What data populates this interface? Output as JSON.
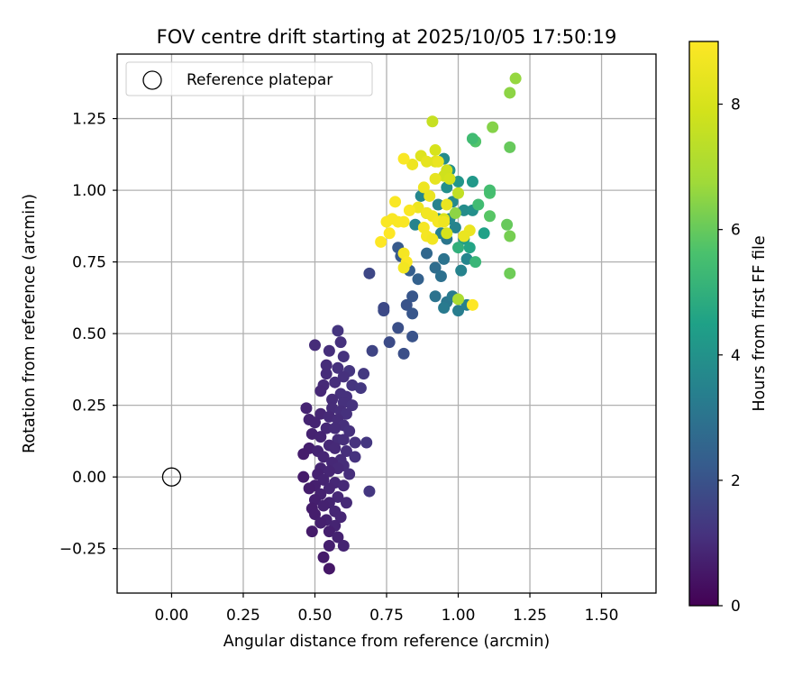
{
  "chart_data": {
    "type": "scatter",
    "title": "FOV centre drift starting at 2025/10/05 17:50:19",
    "xlabel": "Angular distance from reference (arcmin)",
    "ylabel": "Rotation from reference (arcmin)",
    "xlim": [
      -0.19,
      1.69
    ],
    "ylim": [
      -0.405,
      1.475
    ],
    "xticks": [
      0.0,
      0.25,
      0.5,
      0.75,
      1.0,
      1.25,
      1.5
    ],
    "xtick_labels": [
      "0.00",
      "0.25",
      "0.50",
      "0.75",
      "1.00",
      "1.25",
      "1.50"
    ],
    "yticks": [
      -0.25,
      0.0,
      0.25,
      0.5,
      0.75,
      1.0,
      1.25
    ],
    "ytick_labels": [
      "−0.25",
      "0.00",
      "0.25",
      "0.50",
      "0.75",
      "1.00",
      "1.25"
    ],
    "grid": true,
    "legend": {
      "position": "top-left",
      "entries": [
        "Reference platepar"
      ]
    },
    "reference_point": {
      "x": 0.0,
      "y": 0.0,
      "label": "Reference platepar"
    },
    "colorbar": {
      "label": "Hours from first FF file",
      "colormap": "viridis",
      "range": [
        0,
        9
      ],
      "ticks": [
        0,
        2,
        4,
        6,
        8
      ],
      "tick_labels": [
        "0",
        "2",
        "4",
        "6",
        "8"
      ]
    },
    "points": [
      {
        "x": 0.58,
        "y": 0.51,
        "h": 1.2
      },
      {
        "x": 0.5,
        "y": 0.46,
        "h": 1.0
      },
      {
        "x": 0.59,
        "y": 0.47,
        "h": 1.1
      },
      {
        "x": 0.55,
        "y": 0.44,
        "h": 1.05
      },
      {
        "x": 0.6,
        "y": 0.42,
        "h": 1.15
      },
      {
        "x": 0.54,
        "y": 0.39,
        "h": 1.0
      },
      {
        "x": 0.58,
        "y": 0.38,
        "h": 1.1
      },
      {
        "x": 0.62,
        "y": 0.37,
        "h": 1.2
      },
      {
        "x": 0.67,
        "y": 0.36,
        "h": 1.3
      },
      {
        "x": 0.54,
        "y": 0.36,
        "h": 1.0
      },
      {
        "x": 0.6,
        "y": 0.35,
        "h": 1.1
      },
      {
        "x": 0.57,
        "y": 0.33,
        "h": 1.05
      },
      {
        "x": 0.53,
        "y": 0.32,
        "h": 0.95
      },
      {
        "x": 0.63,
        "y": 0.32,
        "h": 1.2
      },
      {
        "x": 0.66,
        "y": 0.31,
        "h": 1.25
      },
      {
        "x": 0.52,
        "y": 0.3,
        "h": 0.9
      },
      {
        "x": 0.59,
        "y": 0.29,
        "h": 1.1
      },
      {
        "x": 0.61,
        "y": 0.28,
        "h": 1.1
      },
      {
        "x": 0.56,
        "y": 0.27,
        "h": 1.0
      },
      {
        "x": 0.6,
        "y": 0.26,
        "h": 1.1
      },
      {
        "x": 0.63,
        "y": 0.25,
        "h": 1.15
      },
      {
        "x": 0.56,
        "y": 0.24,
        "h": 1.0
      },
      {
        "x": 0.47,
        "y": 0.24,
        "h": 0.8
      },
      {
        "x": 0.59,
        "y": 0.23,
        "h": 1.05
      },
      {
        "x": 0.52,
        "y": 0.22,
        "h": 0.85
      },
      {
        "x": 0.61,
        "y": 0.22,
        "h": 1.1
      },
      {
        "x": 0.55,
        "y": 0.21,
        "h": 0.95
      },
      {
        "x": 0.48,
        "y": 0.2,
        "h": 0.8
      },
      {
        "x": 0.58,
        "y": 0.2,
        "h": 1.0
      },
      {
        "x": 0.5,
        "y": 0.19,
        "h": 0.8
      },
      {
        "x": 0.6,
        "y": 0.18,
        "h": 1.05
      },
      {
        "x": 0.54,
        "y": 0.17,
        "h": 0.9
      },
      {
        "x": 0.57,
        "y": 0.17,
        "h": 1.0
      },
      {
        "x": 0.62,
        "y": 0.16,
        "h": 1.1
      },
      {
        "x": 0.49,
        "y": 0.15,
        "h": 0.75
      },
      {
        "x": 0.52,
        "y": 0.14,
        "h": 0.8
      },
      {
        "x": 0.58,
        "y": 0.13,
        "h": 1.0
      },
      {
        "x": 0.6,
        "y": 0.13,
        "h": 1.05
      },
      {
        "x": 0.64,
        "y": 0.12,
        "h": 1.15
      },
      {
        "x": 0.68,
        "y": 0.12,
        "h": 1.25
      },
      {
        "x": 0.55,
        "y": 0.11,
        "h": 0.9
      },
      {
        "x": 0.48,
        "y": 0.1,
        "h": 0.7
      },
      {
        "x": 0.57,
        "y": 0.1,
        "h": 0.95
      },
      {
        "x": 0.61,
        "y": 0.09,
        "h": 1.05
      },
      {
        "x": 0.51,
        "y": 0.09,
        "h": 0.8
      },
      {
        "x": 0.46,
        "y": 0.08,
        "h": 0.65
      },
      {
        "x": 0.53,
        "y": 0.07,
        "h": 0.85
      },
      {
        "x": 0.59,
        "y": 0.06,
        "h": 1.0
      },
      {
        "x": 0.64,
        "y": 0.07,
        "h": 1.15
      },
      {
        "x": 0.56,
        "y": 0.05,
        "h": 0.9
      },
      {
        "x": 0.6,
        "y": 0.04,
        "h": 1.0
      },
      {
        "x": 0.52,
        "y": 0.03,
        "h": 0.8
      },
      {
        "x": 0.58,
        "y": 0.03,
        "h": 0.95
      },
      {
        "x": 0.55,
        "y": 0.02,
        "h": 0.85
      },
      {
        "x": 0.51,
        "y": 0.01,
        "h": 0.75
      },
      {
        "x": 0.62,
        "y": 0.01,
        "h": 1.05
      },
      {
        "x": 0.46,
        "y": 0.0,
        "h": 0.6
      },
      {
        "x": 0.53,
        "y": -0.01,
        "h": 0.8
      },
      {
        "x": 0.57,
        "y": -0.02,
        "h": 0.9
      },
      {
        "x": 0.5,
        "y": -0.03,
        "h": 0.7
      },
      {
        "x": 0.6,
        "y": -0.03,
        "h": 0.95
      },
      {
        "x": 0.55,
        "y": -0.04,
        "h": 0.85
      },
      {
        "x": 0.48,
        "y": -0.04,
        "h": 0.65
      },
      {
        "x": 0.69,
        "y": -0.05,
        "h": 1.25
      },
      {
        "x": 0.52,
        "y": -0.06,
        "h": 0.75
      },
      {
        "x": 0.58,
        "y": -0.07,
        "h": 0.9
      },
      {
        "x": 0.5,
        "y": -0.08,
        "h": 0.7
      },
      {
        "x": 0.61,
        "y": -0.09,
        "h": 0.95
      },
      {
        "x": 0.55,
        "y": -0.09,
        "h": 0.8
      },
      {
        "x": 0.53,
        "y": -0.1,
        "h": 0.75
      },
      {
        "x": 0.49,
        "y": -0.11,
        "h": 0.65
      },
      {
        "x": 0.57,
        "y": -0.12,
        "h": 0.85
      },
      {
        "x": 0.5,
        "y": -0.13,
        "h": 0.65
      },
      {
        "x": 0.59,
        "y": -0.14,
        "h": 0.85
      },
      {
        "x": 0.54,
        "y": -0.15,
        "h": 0.75
      },
      {
        "x": 0.52,
        "y": -0.16,
        "h": 0.7
      },
      {
        "x": 0.57,
        "y": -0.17,
        "h": 0.8
      },
      {
        "x": 0.49,
        "y": -0.19,
        "h": 0.6
      },
      {
        "x": 0.55,
        "y": -0.19,
        "h": 0.7
      },
      {
        "x": 0.58,
        "y": -0.21,
        "h": 0.75
      },
      {
        "x": 0.6,
        "y": -0.24,
        "h": 0.8
      },
      {
        "x": 0.55,
        "y": -0.24,
        "h": 0.7
      },
      {
        "x": 0.53,
        "y": -0.28,
        "h": 0.6
      },
      {
        "x": 0.55,
        "y": -0.32,
        "h": 0.5
      },
      {
        "x": 0.74,
        "y": 0.58,
        "h": 1.8
      },
      {
        "x": 0.7,
        "y": 0.44,
        "h": 1.6
      },
      {
        "x": 0.76,
        "y": 0.47,
        "h": 1.8
      },
      {
        "x": 0.79,
        "y": 0.52,
        "h": 1.9
      },
      {
        "x": 0.81,
        "y": 0.43,
        "h": 1.9
      },
      {
        "x": 0.84,
        "y": 0.49,
        "h": 2.0
      },
      {
        "x": 0.69,
        "y": 0.71,
        "h": 1.7
      },
      {
        "x": 0.74,
        "y": 0.59,
        "h": 1.75
      },
      {
        "x": 0.82,
        "y": 0.6,
        "h": 2.0
      },
      {
        "x": 0.84,
        "y": 0.63,
        "h": 2.1
      },
      {
        "x": 0.84,
        "y": 0.57,
        "h": 2.1
      },
      {
        "x": 0.79,
        "y": 0.8,
        "h": 2.2
      },
      {
        "x": 0.8,
        "y": 0.77,
        "h": 2.2
      },
      {
        "x": 0.86,
        "y": 0.69,
        "h": 2.4
      },
      {
        "x": 0.83,
        "y": 0.72,
        "h": 2.3
      },
      {
        "x": 0.89,
        "y": 0.78,
        "h": 2.6
      },
      {
        "x": 0.92,
        "y": 0.73,
        "h": 2.8
      },
      {
        "x": 0.94,
        "y": 0.7,
        "h": 2.9
      },
      {
        "x": 0.95,
        "y": 0.76,
        "h": 3.0
      },
      {
        "x": 0.96,
        "y": 0.83,
        "h": 3.1
      },
      {
        "x": 0.92,
        "y": 0.63,
        "h": 3.0
      },
      {
        "x": 0.96,
        "y": 0.61,
        "h": 3.1
      },
      {
        "x": 0.98,
        "y": 0.63,
        "h": 3.2
      },
      {
        "x": 1.0,
        "y": 0.58,
        "h": 3.3
      },
      {
        "x": 0.95,
        "y": 0.59,
        "h": 3.2
      },
      {
        "x": 1.03,
        "y": 0.6,
        "h": 3.4
      },
      {
        "x": 1.01,
        "y": 0.72,
        "h": 3.5
      },
      {
        "x": 1.03,
        "y": 0.76,
        "h": 3.6
      },
      {
        "x": 0.94,
        "y": 0.85,
        "h": 3.4
      },
      {
        "x": 0.99,
        "y": 0.87,
        "h": 3.5
      },
      {
        "x": 0.97,
        "y": 0.9,
        "h": 3.6
      },
      {
        "x": 0.93,
        "y": 0.95,
        "h": 3.5
      },
      {
        "x": 0.98,
        "y": 0.96,
        "h": 3.7
      },
      {
        "x": 1.02,
        "y": 0.93,
        "h": 3.8
      },
      {
        "x": 1.05,
        "y": 0.93,
        "h": 3.9
      },
      {
        "x": 1.05,
        "y": 1.03,
        "h": 4.2
      },
      {
        "x": 0.96,
        "y": 1.01,
        "h": 3.9
      },
      {
        "x": 0.95,
        "y": 1.11,
        "h": 3.8
      },
      {
        "x": 0.97,
        "y": 1.07,
        "h": 4.0
      },
      {
        "x": 1.0,
        "y": 1.03,
        "h": 4.1
      },
      {
        "x": 0.87,
        "y": 0.98,
        "h": 3.6
      },
      {
        "x": 0.89,
        "y": 0.92,
        "h": 3.7
      },
      {
        "x": 0.85,
        "y": 0.88,
        "h": 3.5
      },
      {
        "x": 0.93,
        "y": 0.9,
        "h": 3.9
      },
      {
        "x": 1.09,
        "y": 0.85,
        "h": 4.5
      },
      {
        "x": 1.02,
        "y": 0.83,
        "h": 4.3
      },
      {
        "x": 1.04,
        "y": 0.8,
        "h": 4.6
      },
      {
        "x": 1.06,
        "y": 0.75,
        "h": 5.2
      },
      {
        "x": 1.0,
        "y": 0.8,
        "h": 5.0
      },
      {
        "x": 1.07,
        "y": 0.95,
        "h": 5.4
      },
      {
        "x": 1.11,
        "y": 0.99,
        "h": 5.6
      },
      {
        "x": 1.11,
        "y": 1.0,
        "h": 5.5
      },
      {
        "x": 1.06,
        "y": 1.17,
        "h": 5.7
      },
      {
        "x": 1.05,
        "y": 1.18,
        "h": 5.4
      },
      {
        "x": 1.18,
        "y": 1.15,
        "h": 6.0
      },
      {
        "x": 1.18,
        "y": 1.34,
        "h": 6.5
      },
      {
        "x": 1.2,
        "y": 1.39,
        "h": 6.6
      },
      {
        "x": 1.12,
        "y": 1.22,
        "h": 6.4
      },
      {
        "x": 1.11,
        "y": 0.91,
        "h": 5.8
      },
      {
        "x": 1.17,
        "y": 0.88,
        "h": 6.0
      },
      {
        "x": 1.18,
        "y": 0.84,
        "h": 6.2
      },
      {
        "x": 1.18,
        "y": 0.71,
        "h": 6.1
      },
      {
        "x": 0.99,
        "y": 0.92,
        "h": 6.5
      },
      {
        "x": 1.0,
        "y": 0.62,
        "h": 7.0
      },
      {
        "x": 0.91,
        "y": 1.24,
        "h": 7.6
      },
      {
        "x": 0.95,
        "y": 1.05,
        "h": 7.8
      },
      {
        "x": 0.96,
        "y": 1.07,
        "h": 7.8
      },
      {
        "x": 0.97,
        "y": 1.04,
        "h": 7.9
      },
      {
        "x": 1.0,
        "y": 0.99,
        "h": 7.5
      },
      {
        "x": 0.92,
        "y": 1.14,
        "h": 8.0
      },
      {
        "x": 0.95,
        "y": 0.9,
        "h": 8.1
      },
      {
        "x": 0.96,
        "y": 0.85,
        "h": 8.0
      },
      {
        "x": 0.87,
        "y": 1.12,
        "h": 8.2
      },
      {
        "x": 0.89,
        "y": 1.1,
        "h": 8.4
      },
      {
        "x": 0.92,
        "y": 1.1,
        "h": 8.3
      },
      {
        "x": 0.93,
        "y": 1.1,
        "h": 8.5
      },
      {
        "x": 0.9,
        "y": 0.98,
        "h": 8.5
      },
      {
        "x": 0.92,
        "y": 1.04,
        "h": 8.4
      },
      {
        "x": 0.88,
        "y": 1.01,
        "h": 8.6
      },
      {
        "x": 0.86,
        "y": 0.94,
        "h": 8.6
      },
      {
        "x": 0.89,
        "y": 0.92,
        "h": 8.7
      },
      {
        "x": 0.91,
        "y": 0.91,
        "h": 8.7
      },
      {
        "x": 0.93,
        "y": 0.89,
        "h": 8.8
      },
      {
        "x": 0.95,
        "y": 0.89,
        "h": 8.6
      },
      {
        "x": 0.96,
        "y": 0.95,
        "h": 8.5
      },
      {
        "x": 0.88,
        "y": 0.87,
        "h": 8.8
      },
      {
        "x": 0.89,
        "y": 0.84,
        "h": 8.8
      },
      {
        "x": 0.91,
        "y": 0.83,
        "h": 8.7
      },
      {
        "x": 0.83,
        "y": 0.93,
        "h": 8.9
      },
      {
        "x": 0.81,
        "y": 0.89,
        "h": 8.9
      },
      {
        "x": 0.78,
        "y": 0.96,
        "h": 8.9
      },
      {
        "x": 0.77,
        "y": 0.9,
        "h": 8.9
      },
      {
        "x": 0.79,
        "y": 0.89,
        "h": 8.9
      },
      {
        "x": 0.75,
        "y": 0.89,
        "h": 8.9
      },
      {
        "x": 0.76,
        "y": 0.85,
        "h": 9.0
      },
      {
        "x": 0.73,
        "y": 0.82,
        "h": 9.0
      },
      {
        "x": 0.81,
        "y": 0.78,
        "h": 8.8
      },
      {
        "x": 0.82,
        "y": 0.75,
        "h": 8.9
      },
      {
        "x": 0.81,
        "y": 0.73,
        "h": 8.7
      },
      {
        "x": 0.84,
        "y": 1.09,
        "h": 8.6
      },
      {
        "x": 0.81,
        "y": 1.11,
        "h": 8.9
      },
      {
        "x": 1.05,
        "y": 0.6,
        "h": 9.0
      },
      {
        "x": 1.04,
        "y": 0.86,
        "h": 8.5
      },
      {
        "x": 1.02,
        "y": 0.84,
        "h": 8.5
      }
    ]
  }
}
